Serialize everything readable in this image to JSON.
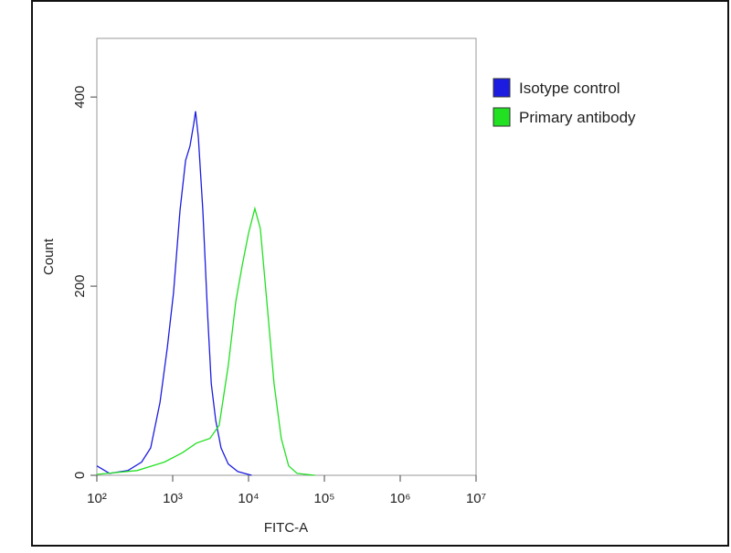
{
  "chart_data": {
    "type": "line",
    "x_label": "FITC-A",
    "y_label": "Count",
    "xscale": "log",
    "xlim": [
      100,
      10000000
    ],
    "xticks": [
      {
        "value": 100,
        "label": "10²"
      },
      {
        "value": 1000,
        "label": "10³"
      },
      {
        "value": 10000,
        "label": "10⁴"
      },
      {
        "value": 100000,
        "label": "10⁵"
      },
      {
        "value": 1000000,
        "label": "10⁶"
      },
      {
        "value": 10000000,
        "label": "10⁷"
      }
    ],
    "ylim": [
      0,
      462
    ],
    "yticks": [
      0,
      200,
      400
    ],
    "legend": "outside-right",
    "series": [
      {
        "name": "Isotype control",
        "color": "#1c1ce0",
        "x": [
          100,
          147,
          257,
          389,
          513,
          680,
          850,
          1024,
          1250,
          1480,
          1690,
          1900,
          2000,
          2180,
          2500,
          2870,
          3220,
          3690,
          4340,
          5400,
          7200,
          11000
        ],
        "values": [
          10,
          2,
          5,
          14,
          29,
          77,
          135,
          193,
          280,
          333,
          348,
          372,
          385,
          357,
          280,
          174,
          97,
          58,
          29,
          12,
          4,
          0
        ]
      },
      {
        "name": "Primary antibody",
        "color": "#22e022",
        "x": [
          100,
          339,
          780,
          1350,
          2050,
          3100,
          4100,
          5400,
          6800,
          8250,
          10000,
          12100,
          14300,
          17400,
          21700,
          27000,
          33800,
          43600,
          75000
        ],
        "values": [
          1,
          5,
          14,
          24,
          34,
          39,
          53,
          116,
          184,
          222,
          256,
          282,
          261,
          184,
          97,
          39,
          10,
          2,
          0
        ]
      }
    ]
  }
}
